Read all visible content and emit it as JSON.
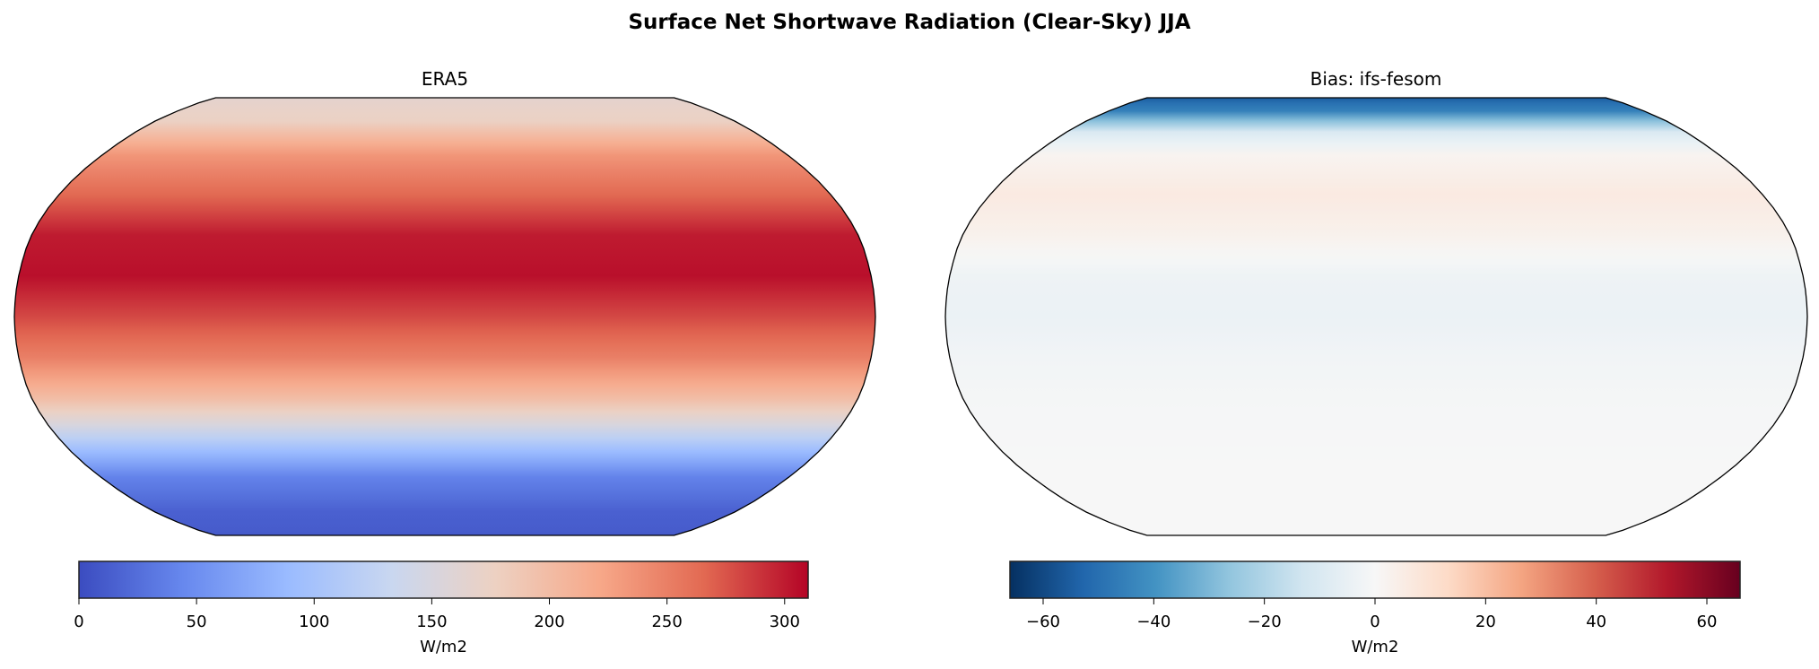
{
  "figure": {
    "title": "Surface Net Shortwave Radiation (Clear-Sky) JJA"
  },
  "chart_data": [
    {
      "type": "heatmap",
      "projection": "Robinson",
      "title": "ERA5",
      "colormap": "coolwarm",
      "colorbar": {
        "label": "W/m2",
        "range": [
          0,
          310
        ],
        "ticks": [
          0,
          50,
          100,
          150,
          200,
          250,
          300
        ],
        "tick_labels": [
          "0",
          "50",
          "100",
          "150",
          "200",
          "250",
          "300"
        ],
        "colors": [
          "#3b4cc0",
          "#6788ee",
          "#9abbff",
          "#c9d7f0",
          "#edd1c2",
          "#f7a889",
          "#e26952",
          "#b40426"
        ]
      },
      "zonal_profile": {
        "lat": [
          90,
          75,
          60,
          45,
          30,
          15,
          0,
          -15,
          -30,
          -40,
          -50,
          -60,
          -75,
          -90
        ],
        "value": [
          165,
          175,
          235,
          265,
          300,
          305,
          280,
          250,
          200,
          150,
          90,
          40,
          15,
          10
        ]
      }
    },
    {
      "type": "heatmap",
      "projection": "Robinson",
      "title": "Bias: ifs-fesom",
      "colormap": "RdBu_r",
      "colorbar": {
        "label": "W/m2",
        "range": [
          -66,
          66
        ],
        "ticks": [
          -60,
          -40,
          -20,
          0,
          20,
          40,
          60
        ],
        "tick_labels": [
          "−60",
          "−40",
          "−20",
          "0",
          "20",
          "40",
          "60"
        ],
        "colors": [
          "#053061",
          "#2166ac",
          "#4393c3",
          "#92c5de",
          "#d1e5f0",
          "#f7f7f7",
          "#fddbc7",
          "#f4a582",
          "#d6604d",
          "#b2182b",
          "#67001f"
        ]
      },
      "zonal_profile": {
        "lat": [
          90,
          80,
          70,
          60,
          45,
          30,
          15,
          0,
          -15,
          -30,
          -60,
          -90
        ],
        "value": [
          -55,
          -45,
          -10,
          2,
          6,
          3,
          -3,
          -4,
          -2,
          -1,
          0,
          0
        ]
      }
    }
  ]
}
